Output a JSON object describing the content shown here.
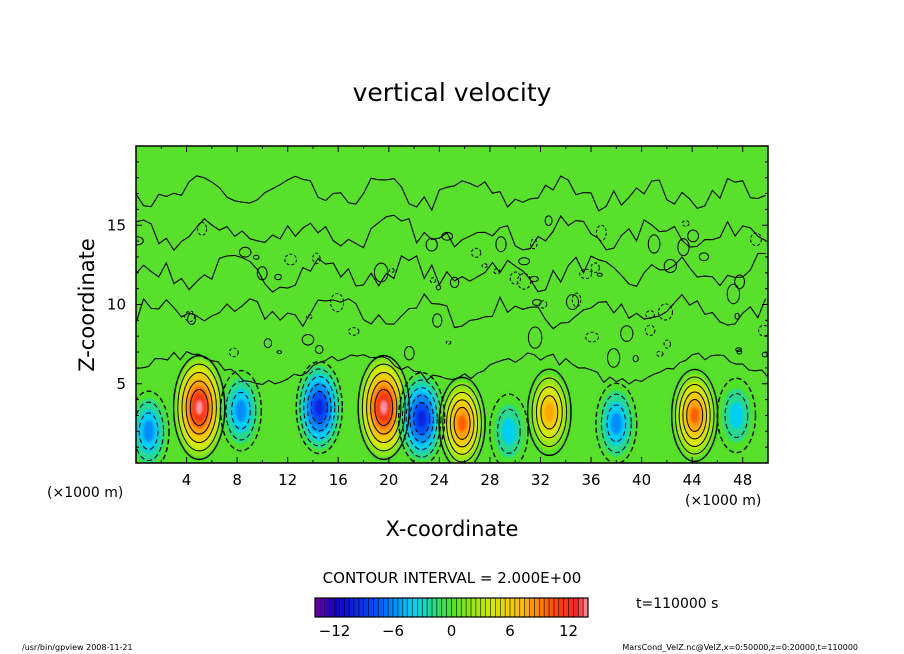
{
  "chart_data": {
    "type": "heatmap",
    "title": "vertical velocity",
    "xlabel": "X-coordinate",
    "ylabel": "Z-coordinate",
    "x_units": "(×1000 m)",
    "z_units": "(×1000 m)",
    "xlim": [
      0,
      50
    ],
    "zlim": [
      0,
      20
    ],
    "x_ticks": [
      4,
      8,
      12,
      16,
      20,
      24,
      28,
      32,
      36,
      40,
      44,
      48
    ],
    "z_ticks": [
      5,
      10,
      15
    ],
    "contour_interval_text": "CONTOUR INTERVAL = 2.000E+00",
    "time_text": "t=110000  s",
    "colorbar": {
      "min": -14,
      "max": 14,
      "ticks": [
        -12,
        -6,
        0,
        6,
        12
      ]
    },
    "cells": [
      {
        "x": 1.0,
        "z": 2.0,
        "value": -6
      },
      {
        "x": 5.0,
        "z": 3.5,
        "value": 14
      },
      {
        "x": 8.3,
        "z": 3.3,
        "value": -6
      },
      {
        "x": 14.5,
        "z": 3.5,
        "value": -10
      },
      {
        "x": 19.6,
        "z": 3.5,
        "value": 14
      },
      {
        "x": 22.6,
        "z": 2.8,
        "value": -10
      },
      {
        "x": 25.8,
        "z": 2.5,
        "value": 10
      },
      {
        "x": 29.5,
        "z": 2.0,
        "value": -4
      },
      {
        "x": 32.7,
        "z": 3.2,
        "value": 8
      },
      {
        "x": 38.0,
        "z": 2.5,
        "value": -6
      },
      {
        "x": 44.2,
        "z": 3.0,
        "value": 10
      },
      {
        "x": 47.5,
        "z": 3.0,
        "value": -4
      }
    ]
  },
  "footer": {
    "left": "/usr/bin/gpview  2008-11-21",
    "right": "MarsCond_VelZ.nc@VelZ,x=0:50000,z=0:20000,t=110000"
  }
}
